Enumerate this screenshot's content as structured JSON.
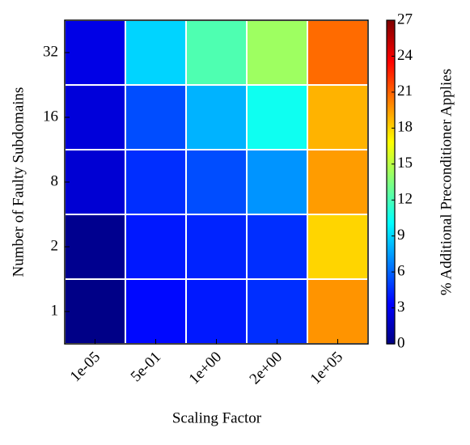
{
  "chart_data": {
    "type": "heatmap",
    "x_label": "Scaling Factor",
    "y_label": "Number of Faulty Subdomains",
    "colorbar_label": "% Additional Preconditioner Applies",
    "x_categories": [
      "1e-05",
      "5e-01",
      "1e+00",
      "2e+00",
      "1e+05"
    ],
    "y_categories": [
      "1",
      "2",
      "8",
      "16",
      "32"
    ],
    "values": [
      [
        0.2,
        3.6,
        4.0,
        4.6,
        19.7
      ],
      [
        0.4,
        4.0,
        4.3,
        4.6,
        18.0
      ],
      [
        2.2,
        4.6,
        5.4,
        7.3,
        19.5
      ],
      [
        2.4,
        5.4,
        8.1,
        10.5,
        18.9
      ],
      [
        2.7,
        9.0,
        12.2,
        14.3,
        20.8
      ]
    ],
    "colormap": "jet",
    "clim": [
      0,
      27
    ],
    "cticks": [
      0,
      3,
      6,
      9,
      12,
      15,
      18,
      21,
      24,
      27
    ]
  }
}
